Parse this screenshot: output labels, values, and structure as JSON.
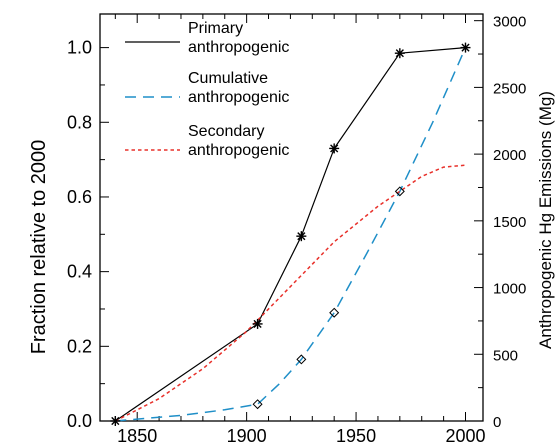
{
  "chart_data": {
    "type": "line",
    "xlabel": "",
    "ylabel_left": "Fraction relative to 2000",
    "ylabel_right": "Anthropogenic Hg Emissions (Mg)",
    "xlim": [
      1833,
      2008
    ],
    "ylim_left": [
      0,
      1.09
    ],
    "ylim_right": [
      0,
      3050
    ],
    "x_ticks": [
      1850,
      1900,
      1950,
      2000
    ],
    "y_ticks_left": [
      "0.0",
      "0.2",
      "0.4",
      "0.6",
      "0.8",
      "1.0"
    ],
    "y_ticks_right": [
      0,
      500,
      1000,
      1500,
      2000,
      2500,
      3000
    ],
    "grid": false,
    "legend_position": "top-left",
    "series": [
      {
        "name": "Primary anthropogenic",
        "legend_lines": [
          "Primary",
          "anthropogenic"
        ],
        "style": "solid",
        "color": "#000000",
        "marker": "asterisk",
        "x": [
          1840,
          1905,
          1925,
          1940,
          1970,
          2000
        ],
        "y": [
          0.0,
          0.26,
          0.495,
          0.73,
          0.985,
          1.0
        ]
      },
      {
        "name": "Cumulative anthropogenic",
        "legend_lines": [
          "Cumulative",
          "anthropogenic"
        ],
        "style": "dashed",
        "color": "#1f8fc8",
        "marker": "diamond",
        "marker_x": [
          1905,
          1925,
          1940,
          1970
        ],
        "x": [
          1840,
          1850,
          1870,
          1890,
          1905,
          1915,
          1925,
          1940,
          1955,
          1970,
          1985,
          2000
        ],
        "y": [
          0.0,
          0.005,
          0.015,
          0.03,
          0.045,
          0.1,
          0.165,
          0.29,
          0.45,
          0.615,
          0.8,
          1.0
        ]
      },
      {
        "name": "Secondary anthropogenic",
        "legend_lines": [
          "Secondary",
          "anthropogenic"
        ],
        "style": "dotted",
        "color": "#e8302a",
        "marker": "none",
        "x": [
          1840,
          1860,
          1880,
          1900,
          1920,
          1940,
          1960,
          1980,
          1990,
          2000
        ],
        "y": [
          0.0,
          0.06,
          0.14,
          0.24,
          0.36,
          0.48,
          0.575,
          0.655,
          0.68,
          0.685
        ]
      }
    ]
  }
}
